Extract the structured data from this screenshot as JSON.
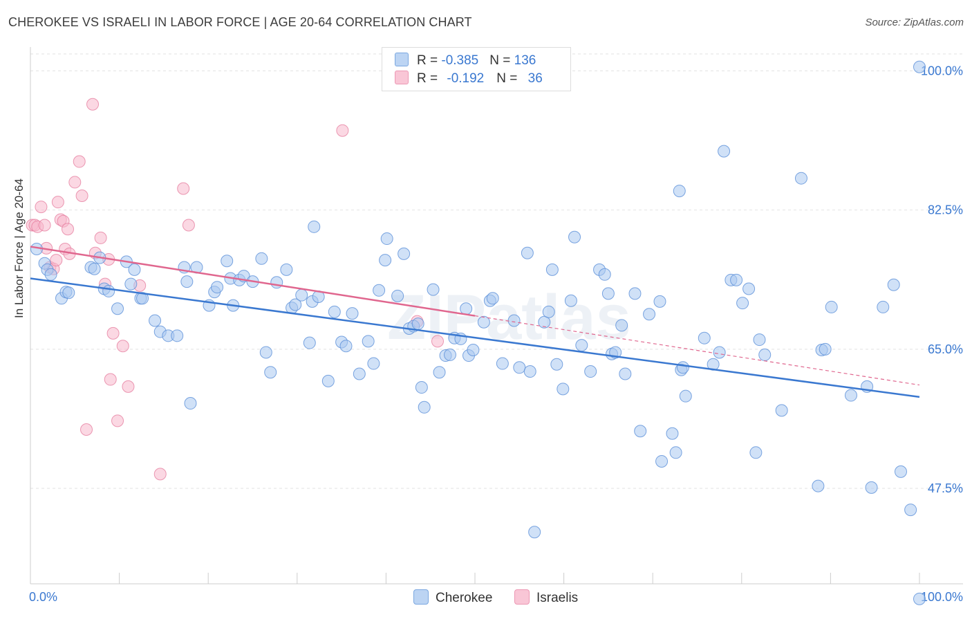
{
  "title": "CHEROKEE VS ISRAELI IN LABOR FORCE | AGE 20-64 CORRELATION CHART",
  "source": "Source: ZipAtlas.com",
  "watermark": "ZIPatlas",
  "legend": {
    "row1": {
      "r_label": "R = ",
      "r_value": "-0.385",
      "n_label": "N = ",
      "n_value": "136"
    },
    "row2": {
      "r_label": "R = ",
      "r_value": "-0.192",
      "n_label": "N = ",
      "n_value": "36"
    }
  },
  "bottom_legend": {
    "cherokee": "Cherokee",
    "israelis": "Israelis"
  },
  "colors": {
    "cherokee_fill": "#a9c8f0",
    "cherokee_stroke": "#5a8fd8",
    "cherokee_line": "#3a78d0",
    "israeli_fill": "#f7b8cc",
    "israeli_stroke": "#e67fa0",
    "israeli_line": "#e0668e",
    "axis_label": "#3a78d0",
    "grid": "#e2e2e2"
  },
  "chart_data": {
    "type": "scatter",
    "title": "CHEROKEE VS ISRAELI IN LABOR FORCE | AGE 20-64 CORRELATION CHART",
    "xlabel": "",
    "ylabel": "In Labor Force | Age 20-64",
    "xlim": [
      0,
      100
    ],
    "ylim": [
      35.5,
      103
    ],
    "x_tick_labels": [
      "0.0%",
      "100.0%"
    ],
    "y_ticks": [
      47.5,
      65.0,
      82.5,
      100.0
    ],
    "y_tick_labels": [
      "47.5%",
      "65.0%",
      "82.5%",
      "100.0%"
    ],
    "grid": true,
    "legend_position": "top-center",
    "series": [
      {
        "name": "Cherokee",
        "r": -0.385,
        "n": 136,
        "trend": {
          "x": [
            0,
            100
          ],
          "y": [
            73.9,
            59.0
          ]
        },
        "points": [
          [
            0.7,
            77.6
          ],
          [
            1.6,
            75.8
          ],
          [
            1.9,
            75.0
          ],
          [
            2.3,
            74.4
          ],
          [
            3.5,
            71.4
          ],
          [
            4.0,
            72.2
          ],
          [
            4.3,
            72.1
          ],
          [
            6.8,
            75.3
          ],
          [
            7.2,
            75.1
          ],
          [
            7.8,
            76.5
          ],
          [
            8.3,
            72.6
          ],
          [
            8.8,
            72.3
          ],
          [
            9.8,
            70.1
          ],
          [
            10.8,
            76.0
          ],
          [
            11.3,
            73.2
          ],
          [
            11.7,
            75.0
          ],
          [
            12.4,
            71.4
          ],
          [
            12.6,
            71.4
          ],
          [
            14.0,
            68.6
          ],
          [
            14.6,
            67.2
          ],
          [
            15.5,
            66.7
          ],
          [
            16.5,
            66.7
          ],
          [
            17.3,
            75.3
          ],
          [
            17.6,
            73.5
          ],
          [
            18.0,
            58.2
          ],
          [
            18.7,
            75.3
          ],
          [
            20.1,
            70.5
          ],
          [
            20.7,
            72.2
          ],
          [
            21.0,
            72.8
          ],
          [
            22.1,
            76.1
          ],
          [
            22.5,
            73.9
          ],
          [
            22.8,
            70.5
          ],
          [
            23.5,
            73.7
          ],
          [
            24.0,
            74.2
          ],
          [
            25.0,
            73.5
          ],
          [
            26.0,
            76.4
          ],
          [
            26.5,
            64.6
          ],
          [
            27.0,
            62.1
          ],
          [
            27.7,
            73.4
          ],
          [
            28.8,
            75.0
          ],
          [
            29.4,
            70.2
          ],
          [
            29.8,
            70.6
          ],
          [
            30.5,
            71.8
          ],
          [
            31.4,
            65.8
          ],
          [
            31.7,
            71.0
          ],
          [
            31.9,
            80.4
          ],
          [
            32.4,
            71.6
          ],
          [
            33.5,
            61.0
          ],
          [
            34.2,
            69.7
          ],
          [
            35.0,
            65.9
          ],
          [
            35.5,
            65.4
          ],
          [
            36.2,
            69.5
          ],
          [
            37.0,
            61.9
          ],
          [
            38.0,
            66.0
          ],
          [
            38.6,
            63.2
          ],
          [
            39.2,
            72.4
          ],
          [
            39.9,
            76.2
          ],
          [
            40.1,
            78.9
          ],
          [
            41.3,
            71.7
          ],
          [
            42.0,
            77.0
          ],
          [
            42.6,
            67.6
          ],
          [
            43.1,
            67.9
          ],
          [
            43.6,
            68.2
          ],
          [
            44.0,
            60.2
          ],
          [
            44.3,
            57.7
          ],
          [
            45.3,
            72.5
          ],
          [
            46.0,
            62.1
          ],
          [
            46.7,
            64.2
          ],
          [
            47.2,
            64.3
          ],
          [
            47.7,
            66.4
          ],
          [
            48.4,
            66.3
          ],
          [
            49.0,
            70.1
          ],
          [
            49.3,
            64.2
          ],
          [
            49.8,
            64.9
          ],
          [
            51.0,
            68.4
          ],
          [
            51.7,
            71.1
          ],
          [
            52.0,
            71.4
          ],
          [
            53.1,
            63.2
          ],
          [
            54.4,
            68.6
          ],
          [
            55.0,
            62.7
          ],
          [
            55.9,
            77.1
          ],
          [
            56.2,
            62.2
          ],
          [
            57.8,
            68.4
          ],
          [
            58.3,
            69.7
          ],
          [
            58.7,
            75.0
          ],
          [
            59.2,
            63.1
          ],
          [
            59.9,
            60.0
          ],
          [
            60.8,
            71.1
          ],
          [
            61.2,
            79.1
          ],
          [
            62.0,
            65.5
          ],
          [
            63.0,
            62.2
          ],
          [
            64.0,
            75.0
          ],
          [
            64.6,
            74.4
          ],
          [
            65.0,
            72.0
          ],
          [
            65.4,
            64.4
          ],
          [
            65.8,
            64.6
          ],
          [
            66.5,
            68.0
          ],
          [
            66.9,
            61.9
          ],
          [
            68.0,
            72.0
          ],
          [
            68.6,
            54.7
          ],
          [
            69.6,
            69.4
          ],
          [
            70.8,
            71.0
          ],
          [
            71.0,
            50.9
          ],
          [
            72.2,
            54.4
          ],
          [
            72.6,
            52.0
          ],
          [
            73.0,
            84.9
          ],
          [
            73.2,
            62.4
          ],
          [
            73.4,
            62.7
          ],
          [
            73.7,
            59.1
          ],
          [
            75.8,
            66.4
          ],
          [
            76.8,
            63.1
          ],
          [
            77.5,
            64.6
          ],
          [
            78.0,
            89.9
          ],
          [
            78.8,
            73.7
          ],
          [
            79.4,
            73.7
          ],
          [
            80.1,
            70.8
          ],
          [
            80.8,
            72.6
          ],
          [
            82.0,
            66.2
          ],
          [
            82.6,
            64.3
          ],
          [
            86.7,
            86.5
          ],
          [
            89.0,
            64.9
          ],
          [
            89.4,
            65.0
          ],
          [
            92.3,
            59.2
          ],
          [
            94.1,
            60.3
          ],
          [
            94.6,
            47.6
          ],
          [
            100.0,
            33.6
          ],
          [
            100.0,
            100.5
          ],
          [
            81.6,
            52.0
          ],
          [
            88.6,
            47.8
          ],
          [
            97.9,
            49.6
          ],
          [
            99.0,
            44.8
          ],
          [
            56.7,
            42.0
          ],
          [
            90.1,
            70.3
          ],
          [
            95.9,
            70.3
          ],
          [
            97.1,
            73.1
          ],
          [
            84.5,
            57.3
          ]
        ]
      },
      {
        "name": "Israelis",
        "r": -0.192,
        "n": 36,
        "trend_solid": {
          "x": [
            0,
            50
          ],
          "y": [
            77.9,
            69.2
          ]
        },
        "trend_dashed": {
          "x": [
            50,
            100
          ],
          "y": [
            69.2,
            60.5
          ]
        },
        "points": [
          [
            0.2,
            80.6
          ],
          [
            0.5,
            80.6
          ],
          [
            0.8,
            80.4
          ],
          [
            1.2,
            82.9
          ],
          [
            1.6,
            80.6
          ],
          [
            1.8,
            77.7
          ],
          [
            2.2,
            75.3
          ],
          [
            2.6,
            75.1
          ],
          [
            2.9,
            76.2
          ],
          [
            3.1,
            83.5
          ],
          [
            3.4,
            81.3
          ],
          [
            3.7,
            81.1
          ],
          [
            3.9,
            77.6
          ],
          [
            4.2,
            80.1
          ],
          [
            4.4,
            77.0
          ],
          [
            5.0,
            86.0
          ],
          [
            5.5,
            88.6
          ],
          [
            5.8,
            84.3
          ],
          [
            6.3,
            54.9
          ],
          [
            7.0,
            95.8
          ],
          [
            7.3,
            77.1
          ],
          [
            7.9,
            79.0
          ],
          [
            8.4,
            73.2
          ],
          [
            8.8,
            76.3
          ],
          [
            9.0,
            61.2
          ],
          [
            9.3,
            67.0
          ],
          [
            9.8,
            56.0
          ],
          [
            10.4,
            65.4
          ],
          [
            11.0,
            60.3
          ],
          [
            12.3,
            73.0
          ],
          [
            14.6,
            49.3
          ],
          [
            17.2,
            85.2
          ],
          [
            17.8,
            80.6
          ],
          [
            35.1,
            92.5
          ],
          [
            43.5,
            68.5
          ],
          [
            45.8,
            66.0
          ]
        ]
      }
    ]
  }
}
